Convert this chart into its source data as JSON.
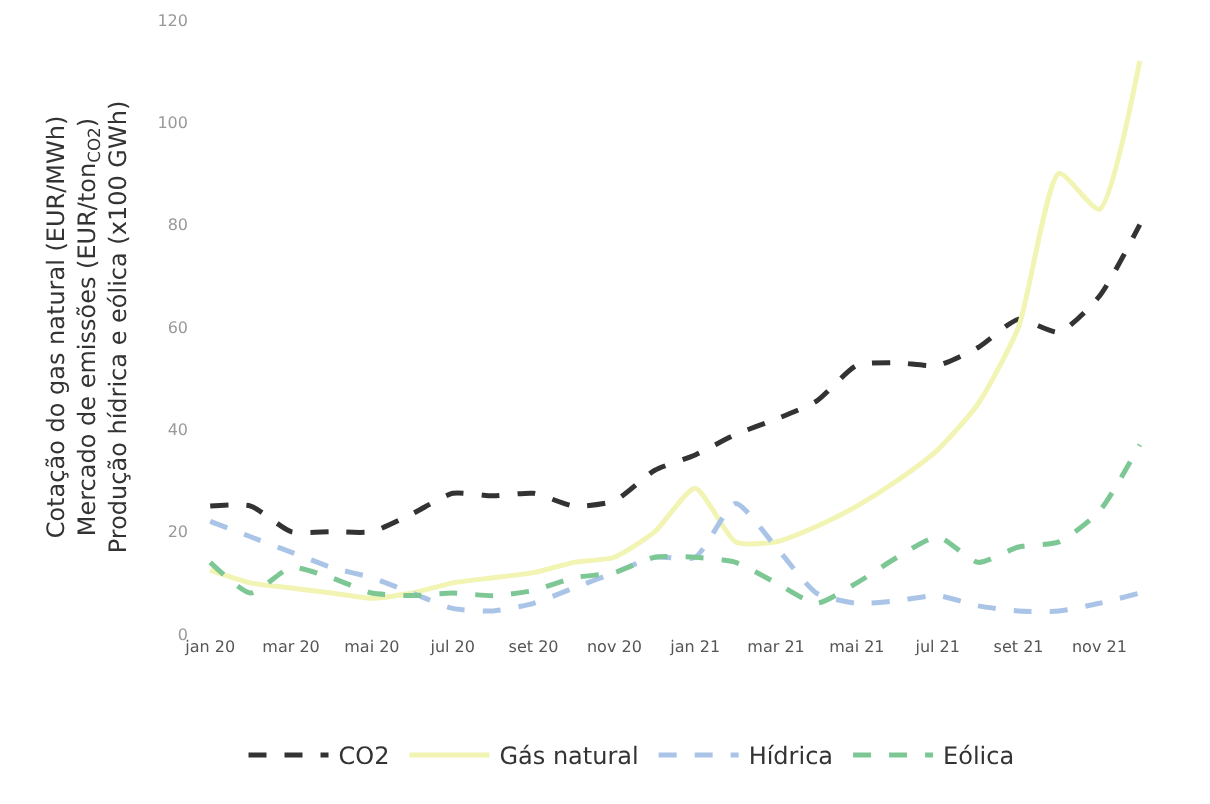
{
  "chart_data": {
    "type": "line",
    "ylabel": "Cotação do gas natural (EUR/MWh)\nMercado de emissões (EUR/ton$_{CO2}$)\nProdução hídrica e eólica (x100 GWh)",
    "categories": [
      "jan 20",
      null,
      "mar 20",
      null,
      "mai 20",
      null,
      "jul 20",
      null,
      "set 20",
      null,
      "nov 20",
      null,
      "jan 21",
      null,
      "mar 21",
      null,
      "mai 21",
      null,
      "jul 21",
      null,
      "set 21",
      null,
      "nov 21",
      null
    ],
    "series": [
      {
        "name": "CO2",
        "color": "#333333",
        "line_style": "dashed",
        "values": [
          25,
          25,
          20,
          20,
          20,
          23.5,
          27.5,
          27,
          27.5,
          25,
          26,
          32,
          35,
          39,
          42,
          45.5,
          52.5,
          53,
          52.5,
          56,
          61.5,
          59,
          66,
          80
        ]
      },
      {
        "name": "Gás natural",
        "color": "#f2f4b4",
        "line_style": "solid",
        "values": [
          12.5,
          10,
          9,
          8,
          7,
          8,
          10,
          11,
          12,
          14,
          15,
          20,
          28.5,
          18,
          18,
          21,
          25,
          30,
          36,
          45,
          60,
          90,
          83,
          112
        ]
      },
      {
        "name": "Hídrica",
        "color": "#a9c4e6",
        "line_style": "dashed",
        "values": [
          22,
          19,
          16,
          13,
          11,
          8,
          5,
          4.5,
          6,
          9,
          12,
          15,
          15,
          25.5,
          17,
          8,
          6,
          6.5,
          7.5,
          5.5,
          4.5,
          4.5,
          6,
          8
        ]
      },
      {
        "name": "Eólica",
        "color": "#7dc795",
        "line_style": "dashed",
        "values": [
          14,
          8,
          13,
          11,
          8,
          7.5,
          8,
          7.5,
          8.5,
          11,
          12,
          15,
          15,
          14,
          10,
          6,
          10,
          15,
          19,
          14,
          17,
          18,
          24,
          37
        ]
      }
    ],
    "ylim": [
      0,
      120
    ],
    "yticks": [
      0,
      20,
      40,
      60,
      80,
      100,
      120
    ],
    "legend": "bottom"
  }
}
